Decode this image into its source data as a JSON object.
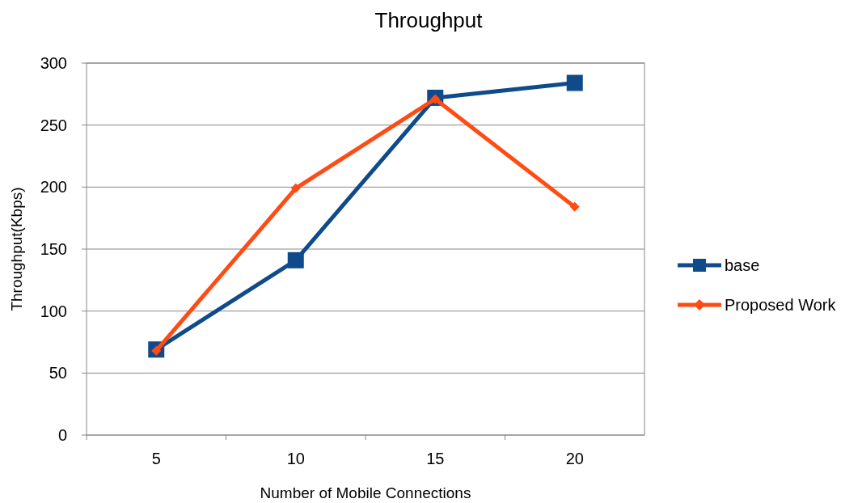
{
  "chart_data": {
    "type": "line",
    "title": "Throughput",
    "xlabel": "Number of Mobile Connections",
    "ylabel": "Throughput(Kbps)",
    "categories": [
      "5",
      "10",
      "15",
      "20"
    ],
    "series": [
      {
        "name": "base",
        "color": "#0f4a8a",
        "marker": "square",
        "values": [
          69,
          141,
          272,
          284
        ]
      },
      {
        "name": "Proposed Work",
        "color": "#ff4b14",
        "marker": "diamond",
        "values": [
          68,
          199,
          271,
          184
        ]
      }
    ],
    "ylim": [
      0,
      300
    ],
    "yticks": [
      0,
      50,
      100,
      150,
      200,
      250,
      300
    ],
    "grid": "y",
    "legend": "right"
  }
}
